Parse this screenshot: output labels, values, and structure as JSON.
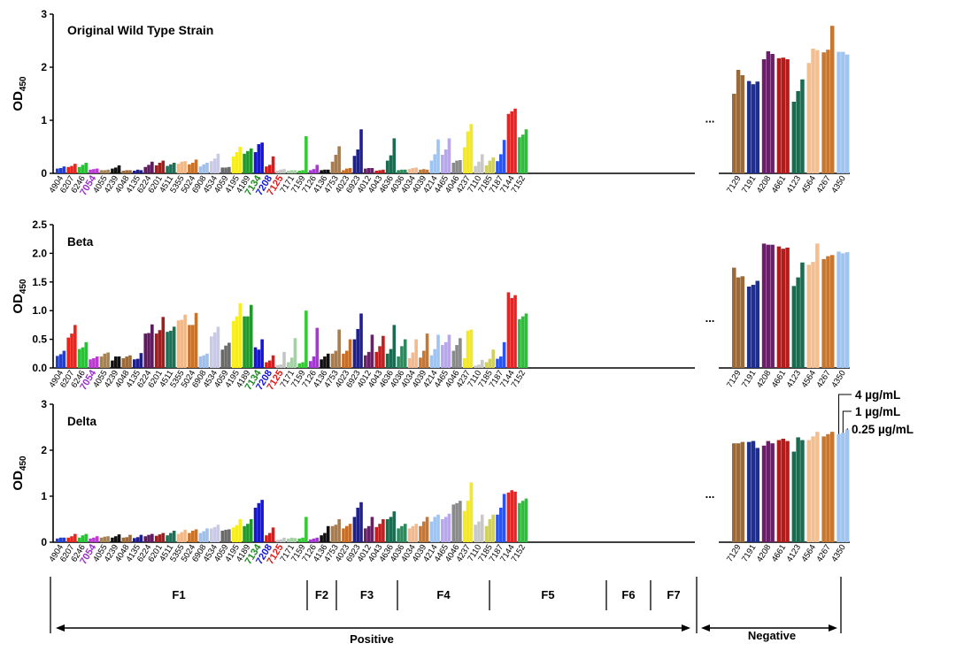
{
  "colors": {
    "axis": "#000000",
    "label": "#000000",
    "highlight_7054": "#9b30c9",
    "highlight_7134": "#1a8a1a",
    "highlight_7208": "#1515d8",
    "highlight_7125": "#e21818"
  },
  "positive_labels": [
    "4904",
    "6207",
    "6246",
    "7054",
    "4055",
    "4239",
    "4048",
    "4135",
    "6224",
    "6201",
    "4511",
    "5355",
    "5024",
    "6908",
    "4534",
    "4059",
    "4195",
    "4189",
    "7134",
    "7208",
    "7125",
    "7171",
    "7159",
    "7126",
    "4136",
    "4753",
    "4023",
    "6923",
    "4012",
    "4043",
    "4636",
    "4036",
    "4034",
    "4039",
    "4214",
    "4465",
    "4046",
    "4237",
    "7110",
    "7185",
    "7187",
    "7144",
    "7152"
  ],
  "negative_labels": [
    "7129",
    "7191",
    "4208",
    "4661",
    "4123",
    "4564",
    "4267",
    "4350"
  ],
  "palette": [
    "#1f3fd8",
    "#e8241c",
    "#2bbf3a",
    "#b93ccf",
    "#a8834f",
    "#111111",
    "#9c6a38",
    "#1e1e8a",
    "#5e1a5e",
    "#a51c1c",
    "#1b7055",
    "#f1b98a",
    "#c8732a",
    "#9fbfec",
    "#c9c9e8",
    "#6a6a6a",
    "#f7ee22",
    "#1f9a2a",
    "#1515d8",
    "#e21818",
    "#c4c4c4",
    "#a8d0a8",
    "#32cc32",
    "#aa33dd",
    "#111111",
    "#a67c52",
    "#c46e28",
    "#1f1f8f",
    "#6b1f6b",
    "#c11f1f",
    "#1b6b50",
    "#2e8a5e",
    "#f2b98f",
    "#c77730",
    "#9fc4f0",
    "#b8a8e8",
    "#8a8a8a",
    "#f5e81c",
    "#c8c8c8",
    "#d0d060",
    "#2a55f0",
    "#ee2020",
    "#2bbf3a"
  ],
  "neg_palette": [
    "#9c6a38",
    "#1f2f8f",
    "#6b1f6b",
    "#b41c1c",
    "#1b6b50",
    "#f3be90",
    "#c77730",
    "#9fc4f0"
  ],
  "ellipsis": "...",
  "groups": [
    {
      "label": "F1",
      "start": "4904",
      "end": "4189"
    },
    {
      "label": "F2",
      "start": "7134",
      "end": "7208"
    },
    {
      "label": "F3",
      "start": "7125",
      "end": "7126"
    },
    {
      "label": "F4",
      "start": "4136",
      "end": "4043"
    },
    {
      "label": "F5",
      "start": "4636",
      "end": "4237"
    },
    {
      "label": "F6",
      "start": "7110",
      "end": "7187"
    },
    {
      "label": "F7",
      "start": "7144",
      "end": "7152"
    }
  ],
  "positive_label": "Positive",
  "negative_label": "Negative",
  "chart_data": [
    {
      "type": "bar",
      "title": "Original Wild Type Strain",
      "ylabel": "OD450",
      "ylim": [
        0,
        3
      ],
      "yticks": [
        "0",
        "1",
        "2",
        "3"
      ],
      "legend": [],
      "series": [
        {
          "name": "4 µg/mL"
        },
        {
          "name": "1 µg/mL"
        },
        {
          "name": "0.25 µg/mL"
        }
      ],
      "values": [
        [
          0.09,
          0.1,
          0.13
        ],
        [
          0.12,
          0.14,
          0.18
        ],
        [
          0.12,
          0.16,
          0.2
        ],
        [
          0.07,
          0.08,
          0.09
        ],
        [
          0.06,
          0.06,
          0.07
        ],
        [
          0.09,
          0.11,
          0.15
        ],
        [
          0.05,
          0.06,
          0.06
        ],
        [
          0.05,
          0.07,
          0.06
        ],
        [
          0.12,
          0.16,
          0.22
        ],
        [
          0.15,
          0.2,
          0.24
        ],
        [
          0.14,
          0.17,
          0.2
        ],
        [
          0.18,
          0.22,
          0.23
        ],
        [
          0.17,
          0.2,
          0.26
        ],
        [
          0.13,
          0.17,
          0.2
        ],
        [
          0.23,
          0.28,
          0.37
        ],
        [
          0.11,
          0.11,
          0.12
        ],
        [
          0.32,
          0.4,
          0.5
        ],
        [
          0.37,
          0.42,
          0.47
        ],
        [
          0.4,
          0.55,
          0.58
        ],
        [
          0.13,
          0.16,
          0.32
        ],
        [
          0.05,
          0.07,
          0.08
        ],
        [
          0.05,
          0.06,
          0.06
        ],
        [
          0.05,
          0.06,
          0.7
        ],
        [
          0.06,
          0.08,
          0.16
        ],
        [
          0.06,
          0.07,
          0.07
        ],
        [
          0.22,
          0.35,
          0.51
        ],
        [
          0.06,
          0.09,
          0.1
        ],
        [
          0.33,
          0.45,
          0.83
        ],
        [
          0.09,
          0.1,
          0.1
        ],
        [
          0.05,
          0.06,
          0.07
        ],
        [
          0.24,
          0.34,
          0.66
        ],
        [
          0.06,
          0.07,
          0.07
        ],
        [
          0.08,
          0.1,
          0.11
        ],
        [
          0.07,
          0.08,
          0.07
        ],
        [
          0.24,
          0.36,
          0.64
        ],
        [
          0.35,
          0.45,
          0.66
        ],
        [
          0.2,
          0.24,
          0.25
        ],
        [
          0.49,
          0.79,
          0.93
        ],
        [
          0.14,
          0.22,
          0.36
        ],
        [
          0.15,
          0.24,
          0.3
        ],
        [
          0.23,
          0.36,
          0.63
        ],
        [
          1.12,
          1.17,
          1.22
        ],
        [
          0.68,
          0.73,
          0.83
        ]
      ],
      "neg_values": [
        [
          1.5,
          1.95,
          1.85
        ],
        [
          1.74,
          1.68,
          1.73
        ],
        [
          2.15,
          2.3,
          2.25
        ],
        [
          2.17,
          2.18,
          2.15
        ],
        [
          1.35,
          1.55,
          1.77
        ],
        [
          2.08,
          2.35,
          2.32
        ],
        [
          2.28,
          2.33,
          2.78
        ],
        [
          2.29,
          2.29,
          2.24
        ]
      ]
    },
    {
      "type": "bar",
      "title": "Beta",
      "ylabel": "OD450",
      "ylim": [
        0,
        2.5
      ],
      "yticks": [
        "0.0",
        "0.5",
        "1.0",
        "1.5",
        "2.0",
        "2.5"
      ],
      "legend": [],
      "series": [
        {
          "name": "4 µg/mL"
        },
        {
          "name": "1 µg/mL"
        },
        {
          "name": "0.25 µg/mL"
        }
      ],
      "values": [
        [
          0.21,
          0.24,
          0.3
        ],
        [
          0.53,
          0.6,
          0.75
        ],
        [
          0.33,
          0.36,
          0.45
        ],
        [
          0.15,
          0.17,
          0.2
        ],
        [
          0.2,
          0.25,
          0.27
        ],
        [
          0.13,
          0.2,
          0.2
        ],
        [
          0.17,
          0.2,
          0.22
        ],
        [
          0.15,
          0.16,
          0.26
        ],
        [
          0.6,
          0.61,
          0.76
        ],
        [
          0.6,
          0.66,
          0.89
        ],
        [
          0.63,
          0.65,
          0.72
        ],
        [
          0.83,
          0.84,
          0.93
        ],
        [
          0.75,
          0.75,
          0.96
        ],
        [
          0.2,
          0.22,
          0.25
        ],
        [
          0.55,
          0.62,
          0.72
        ],
        [
          0.32,
          0.39,
          0.44
        ],
        [
          0.82,
          0.9,
          1.13
        ],
        [
          0.9,
          0.9,
          1.1
        ],
        [
          0.36,
          0.32,
          0.5
        ],
        [
          0.1,
          0.13,
          0.22
        ],
        [
          0.05,
          0.06,
          0.28
        ],
        [
          0.1,
          0.18,
          0.52
        ],
        [
          0.08,
          0.1,
          1.0
        ],
        [
          0.12,
          0.2,
          0.7
        ],
        [
          0.15,
          0.2,
          0.25
        ],
        [
          0.25,
          0.3,
          0.67
        ],
        [
          0.25,
          0.3,
          0.5
        ],
        [
          0.5,
          0.68,
          0.95
        ],
        [
          0.22,
          0.28,
          0.58
        ],
        [
          0.28,
          0.38,
          0.56
        ],
        [
          0.25,
          0.33,
          0.75
        ],
        [
          0.2,
          0.38,
          0.5
        ],
        [
          0.17,
          0.27,
          0.5
        ],
        [
          0.18,
          0.3,
          0.6
        ],
        [
          0.22,
          0.33,
          0.58
        ],
        [
          0.4,
          0.45,
          0.58
        ],
        [
          0.3,
          0.4,
          0.52
        ],
        [
          0.17,
          0.65,
          0.67
        ],
        [
          0.04,
          0.06,
          0.14
        ],
        [
          0.1,
          0.16,
          0.32
        ],
        [
          0.16,
          0.2,
          0.45
        ],
        [
          1.32,
          1.22,
          1.27
        ],
        [
          0.85,
          0.9,
          0.95
        ]
      ],
      "neg_values": [
        [
          1.75,
          1.58,
          1.6
        ],
        [
          1.42,
          1.45,
          1.52
        ],
        [
          2.17,
          2.15,
          2.15
        ],
        [
          2.12,
          2.08,
          2.1
        ],
        [
          1.43,
          1.58,
          1.84
        ],
        [
          1.8,
          1.85,
          2.17
        ],
        [
          1.9,
          1.95,
          1.97
        ],
        [
          2.03,
          2.0,
          2.02
        ]
      ]
    },
    {
      "type": "bar",
      "title": "Delta",
      "ylabel": "OD450",
      "ylim": [
        0,
        3
      ],
      "yticks": [
        "0",
        "1",
        "2",
        "3"
      ],
      "legend": [
        "4 µg/mL",
        "1 µg/mL",
        "0.25 µg/mL"
      ],
      "series": [
        {
          "name": "4 µg/mL"
        },
        {
          "name": "1 µg/mL"
        },
        {
          "name": "0.25 µg/mL"
        }
      ],
      "values": [
        [
          0.08,
          0.1,
          0.1
        ],
        [
          0.1,
          0.13,
          0.18
        ],
        [
          0.1,
          0.15,
          0.18
        ],
        [
          0.08,
          0.1,
          0.13
        ],
        [
          0.1,
          0.12,
          0.13
        ],
        [
          0.1,
          0.13,
          0.17
        ],
        [
          0.1,
          0.11,
          0.16
        ],
        [
          0.09,
          0.11,
          0.16
        ],
        [
          0.13,
          0.16,
          0.18
        ],
        [
          0.14,
          0.17,
          0.2
        ],
        [
          0.15,
          0.2,
          0.25
        ],
        [
          0.18,
          0.22,
          0.27
        ],
        [
          0.2,
          0.25,
          0.28
        ],
        [
          0.2,
          0.24,
          0.3
        ],
        [
          0.3,
          0.33,
          0.38
        ],
        [
          0.25,
          0.27,
          0.28
        ],
        [
          0.32,
          0.37,
          0.5
        ],
        [
          0.35,
          0.4,
          0.5
        ],
        [
          0.75,
          0.85,
          0.92
        ],
        [
          0.15,
          0.2,
          0.32
        ],
        [
          0.05,
          0.06,
          0.1
        ],
        [
          0.08,
          0.1,
          0.09
        ],
        [
          0.08,
          0.1,
          0.55
        ],
        [
          0.06,
          0.08,
          0.1
        ],
        [
          0.15,
          0.2,
          0.35
        ],
        [
          0.35,
          0.38,
          0.5
        ],
        [
          0.3,
          0.35,
          0.4
        ],
        [
          0.55,
          0.75,
          0.87
        ],
        [
          0.3,
          0.35,
          0.55
        ],
        [
          0.33,
          0.4,
          0.5
        ],
        [
          0.5,
          0.55,
          0.67
        ],
        [
          0.3,
          0.35,
          0.4
        ],
        [
          0.3,
          0.35,
          0.4
        ],
        [
          0.35,
          0.45,
          0.55
        ],
        [
          0.45,
          0.55,
          0.6
        ],
        [
          0.5,
          0.55,
          0.62
        ],
        [
          0.82,
          0.85,
          0.9
        ],
        [
          0.68,
          0.9,
          1.3
        ],
        [
          0.38,
          0.45,
          0.6
        ],
        [
          0.35,
          0.5,
          0.6
        ],
        [
          0.6,
          0.75,
          1.05
        ],
        [
          1.08,
          1.13,
          1.1
        ],
        [
          0.85,
          0.9,
          0.95
        ]
      ],
      "neg_values": [
        [
          2.15,
          2.15,
          2.18
        ],
        [
          2.18,
          2.2,
          2.05
        ],
        [
          2.1,
          2.2,
          2.15
        ],
        [
          2.22,
          2.25,
          2.2
        ],
        [
          1.97,
          2.28,
          2.22
        ],
        [
          2.22,
          2.3,
          2.4
        ],
        [
          2.3,
          2.35,
          2.4
        ],
        [
          2.35,
          2.38,
          2.45
        ]
      ]
    }
  ]
}
